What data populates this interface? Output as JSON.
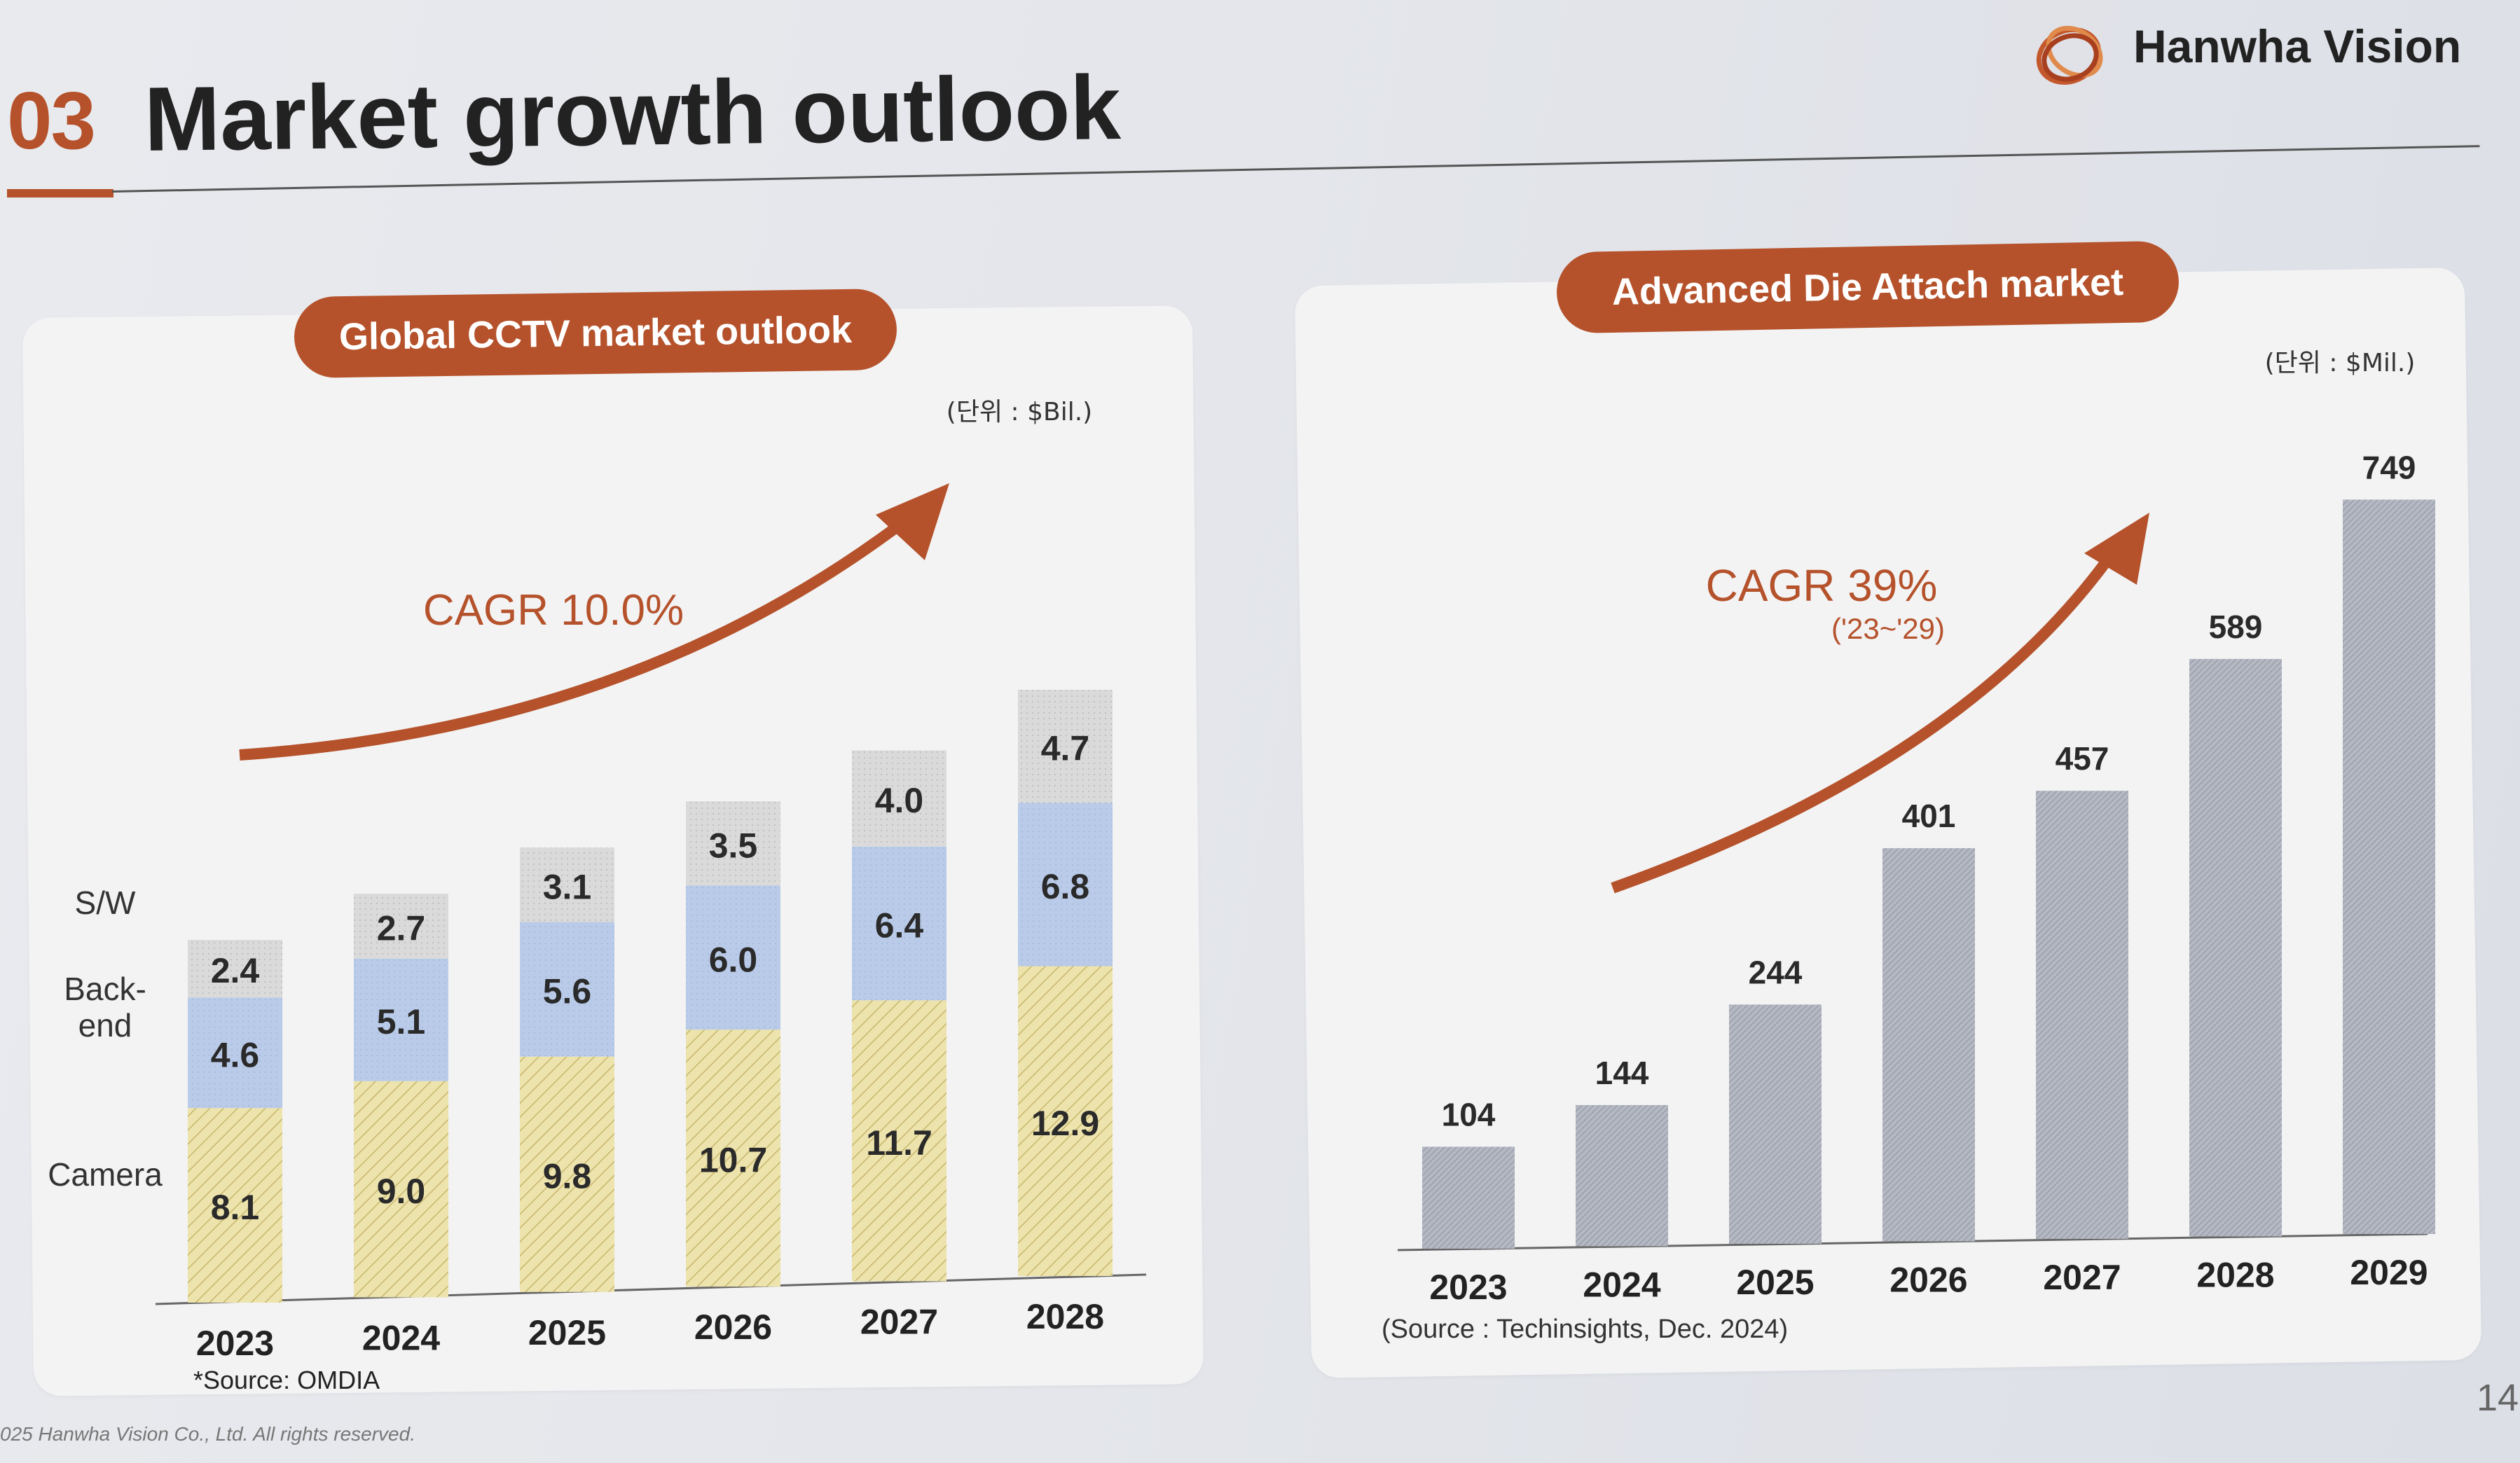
{
  "header": {
    "section_number": "03",
    "title": "Market growth outlook"
  },
  "brand": {
    "name": "Hanwha Vision",
    "color": "#b5522b"
  },
  "footer": {
    "copyright": "025 Hanwha Vision Co., Ltd. All rights reserved.",
    "page": "14"
  },
  "chart_data": [
    {
      "type": "bar",
      "stacked": true,
      "title": "Global CCTV market outlook",
      "unit": "(단위 : $Bil.)",
      "categories": [
        "2023",
        "2024",
        "2025",
        "2026",
        "2027",
        "2028"
      ],
      "series": [
        {
          "name": "Camera",
          "values": [
            8.1,
            9.0,
            9.8,
            10.7,
            11.7,
            12.9
          ],
          "labels": [
            "8.1",
            "9.0",
            "9.8",
            "10.7",
            "11.7",
            "12.9"
          ],
          "color": "#e9e0a6"
        },
        {
          "name": "Back-\nend",
          "values": [
            4.6,
            5.1,
            5.6,
            6.0,
            6.4,
            6.8
          ],
          "labels": [
            "4.6",
            "5.1",
            "5.6",
            "6.0",
            "6.4",
            "6.8"
          ],
          "color": "#b7c8e6"
        },
        {
          "name": "S/W",
          "values": [
            2.4,
            2.7,
            3.1,
            3.5,
            4.0,
            4.7
          ],
          "labels": [
            "2.4",
            "2.7",
            "3.1",
            "3.5",
            "4.0",
            "4.7"
          ],
          "color": "#d8d8d8"
        }
      ],
      "annotation": "CAGR 10.0%",
      "source": "*Source: OMDIA",
      "ylim": [
        0,
        25
      ],
      "grid": false,
      "legend": "left"
    },
    {
      "type": "bar",
      "title": "Advanced Die Attach market",
      "unit": "(단위 : $Mil.)",
      "categories": [
        "2023",
        "2024",
        "2025",
        "2026",
        "2027",
        "2028",
        "2029"
      ],
      "values": [
        104,
        144,
        244,
        401,
        457,
        589,
        749
      ],
      "value_labels": [
        "104",
        "144",
        "244",
        "401",
        "457",
        "589",
        "749"
      ],
      "color": "#a9adb8",
      "annotation": "CAGR 39%",
      "annotation_sub": "('23~'29)",
      "source": "(Source : Techinsights, Dec. 2024)",
      "ylim": [
        0,
        800
      ],
      "grid": false
    }
  ]
}
